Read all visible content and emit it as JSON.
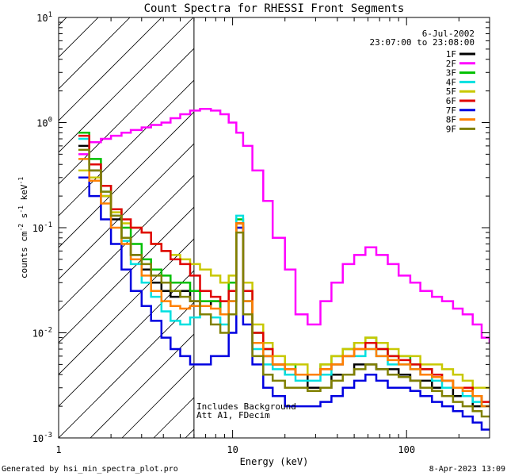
{
  "chart_data": {
    "type": "line",
    "title": "Count Spectra for RHESSI Front Segments",
    "xlabel": "Energy (keV)",
    "ylabel": "counts cm",
    "ylabel_sup1": "-2",
    "ylabel_mid": " s",
    "ylabel_sup2": "-1",
    "ylabel_mid2": " keV",
    "ylabel_sup3": "-1",
    "xscale": "log",
    "yscale": "log",
    "xlim": [
      1,
      300
    ],
    "ylim": [
      0.001,
      10
    ],
    "x_ticks": [
      {
        "value": 1,
        "label": "1"
      },
      {
        "value": 10,
        "label": "10"
      },
      {
        "value": 100,
        "label": "100"
      }
    ],
    "y_ticks": [
      {
        "value": 0.001,
        "base": "10",
        "exp": "-3"
      },
      {
        "value": 0.01,
        "base": "10",
        "exp": "-2"
      },
      {
        "value": 0.1,
        "base": "10",
        "exp": "-1"
      },
      {
        "value": 1,
        "base": "10",
        "exp": "0"
      },
      {
        "value": 10,
        "base": "10",
        "exp": "1"
      }
    ],
    "date_label": "6-Jul-2002",
    "time_label": "23:07:00 to 23:08:00",
    "annotation_line1": "Includes Background",
    "annotation_line2": "Att A1, FDecim",
    "hatch_boundary_keV": 6,
    "series": [
      {
        "name": "1F",
        "color": "#000000",
        "x": [
          1.3,
          1.5,
          1.75,
          2.0,
          2.3,
          2.6,
          3.0,
          3.4,
          3.9,
          4.4,
          5.0,
          5.7,
          6.5,
          7.5,
          8.5,
          9.5,
          10.5,
          11.5,
          13,
          15,
          17,
          20,
          23,
          27,
          32,
          37,
          43,
          50,
          58,
          67,
          78,
          90,
          105,
          120,
          140,
          160,
          185,
          210,
          240,
          270
        ],
        "y": [
          0.6,
          0.35,
          0.2,
          0.12,
          0.08,
          0.055,
          0.04,
          0.03,
          0.025,
          0.022,
          0.025,
          0.02,
          0.018,
          0.02,
          0.015,
          0.02,
          0.11,
          0.02,
          0.008,
          0.006,
          0.005,
          0.004,
          0.004,
          0.003,
          0.003,
          0.004,
          0.004,
          0.005,
          0.005,
          0.0045,
          0.0045,
          0.004,
          0.0035,
          0.0035,
          0.003,
          0.003,
          0.0025,
          0.0025,
          0.002,
          0.002
        ]
      },
      {
        "name": "2F",
        "color": "#ff00ff",
        "x": [
          1.3,
          1.5,
          1.75,
          2.0,
          2.3,
          2.6,
          3.0,
          3.4,
          3.9,
          4.4,
          5.0,
          5.7,
          6.5,
          7.5,
          8.5,
          9.5,
          10.5,
          11.5,
          13,
          15,
          17,
          20,
          23,
          27,
          32,
          37,
          43,
          50,
          58,
          67,
          78,
          90,
          105,
          120,
          140,
          160,
          185,
          210,
          240,
          270,
          300
        ],
        "y": [
          0.5,
          0.65,
          0.7,
          0.75,
          0.8,
          0.85,
          0.9,
          0.95,
          1.0,
          1.1,
          1.2,
          1.3,
          1.35,
          1.3,
          1.2,
          1.0,
          0.8,
          0.6,
          0.35,
          0.18,
          0.08,
          0.04,
          0.015,
          0.012,
          0.02,
          0.03,
          0.045,
          0.055,
          0.065,
          0.055,
          0.045,
          0.035,
          0.03,
          0.025,
          0.022,
          0.02,
          0.017,
          0.015,
          0.012,
          0.009,
          0.008
        ]
      },
      {
        "name": "3F",
        "color": "#00c000",
        "x": [
          1.3,
          1.5,
          1.75,
          2.0,
          2.3,
          2.6,
          3.0,
          3.4,
          3.9,
          4.4,
          5.0,
          5.7,
          6.5,
          7.5,
          8.5,
          9.5,
          10.5,
          11.5,
          13,
          15,
          17,
          20,
          23,
          27,
          32,
          37,
          43,
          50,
          58,
          67,
          78,
          90,
          105,
          120,
          140,
          160,
          185,
          210,
          240,
          270
        ],
        "y": [
          0.8,
          0.45,
          0.25,
          0.15,
          0.1,
          0.07,
          0.05,
          0.04,
          0.035,
          0.03,
          0.03,
          0.025,
          0.02,
          0.02,
          0.015,
          0.03,
          0.12,
          0.025,
          0.01,
          0.007,
          0.005,
          0.005,
          0.004,
          0.004,
          0.005,
          0.006,
          0.007,
          0.008,
          0.009,
          0.007,
          0.006,
          0.006,
          0.005,
          0.0045,
          0.004,
          0.0035,
          0.003,
          0.003,
          0.0025,
          0.002
        ]
      },
      {
        "name": "4F",
        "color": "#00e0e0",
        "x": [
          1.3,
          1.5,
          1.75,
          2.0,
          2.3,
          2.6,
          3.0,
          3.4,
          3.9,
          4.4,
          5.0,
          5.7,
          6.5,
          7.5,
          8.5,
          9.5,
          10.5,
          11.5,
          13,
          15,
          17,
          20,
          23,
          27,
          32,
          37,
          43,
          50,
          58,
          67,
          78,
          90,
          105,
          120,
          140,
          160,
          185,
          210,
          240,
          270
        ],
        "y": [
          0.7,
          0.4,
          0.22,
          0.13,
          0.075,
          0.045,
          0.03,
          0.022,
          0.016,
          0.013,
          0.012,
          0.014,
          0.015,
          0.014,
          0.012,
          0.02,
          0.13,
          0.02,
          0.007,
          0.005,
          0.0045,
          0.004,
          0.0035,
          0.0035,
          0.004,
          0.005,
          0.006,
          0.006,
          0.007,
          0.006,
          0.005,
          0.005,
          0.0045,
          0.004,
          0.0035,
          0.003,
          0.003,
          0.0025,
          0.0022,
          0.002
        ]
      },
      {
        "name": "5F",
        "color": "#c8c800",
        "x": [
          1.3,
          1.5,
          1.75,
          2.0,
          2.3,
          2.6,
          3.0,
          3.4,
          3.9,
          4.4,
          5.0,
          5.7,
          6.5,
          7.5,
          8.5,
          9.5,
          10.5,
          11.5,
          13,
          15,
          17,
          20,
          23,
          27,
          32,
          37,
          43,
          50,
          58,
          67,
          78,
          90,
          105,
          120,
          140,
          160,
          185,
          210,
          240,
          270
        ],
        "y": [
          0.35,
          0.3,
          0.2,
          0.14,
          0.11,
          0.1,
          0.09,
          0.07,
          0.06,
          0.055,
          0.05,
          0.045,
          0.04,
          0.035,
          0.03,
          0.035,
          0.1,
          0.03,
          0.012,
          0.008,
          0.006,
          0.005,
          0.005,
          0.004,
          0.005,
          0.006,
          0.007,
          0.008,
          0.009,
          0.008,
          0.007,
          0.006,
          0.006,
          0.005,
          0.005,
          0.0045,
          0.004,
          0.0035,
          0.003,
          0.003
        ]
      },
      {
        "name": "6F",
        "color": "#e00000",
        "x": [
          1.3,
          1.5,
          1.75,
          2.0,
          2.3,
          2.6,
          3.0,
          3.4,
          3.9,
          4.4,
          5.0,
          5.7,
          6.5,
          7.5,
          8.5,
          9.5,
          10.5,
          11.5,
          13,
          15,
          17,
          20,
          23,
          27,
          32,
          37,
          43,
          50,
          58,
          67,
          78,
          90,
          105,
          120,
          140,
          160,
          185,
          210,
          240,
          270
        ],
        "y": [
          0.75,
          0.4,
          0.25,
          0.15,
          0.12,
          0.1,
          0.09,
          0.07,
          0.06,
          0.05,
          0.045,
          0.035,
          0.025,
          0.022,
          0.02,
          0.025,
          0.11,
          0.025,
          0.01,
          0.007,
          0.005,
          0.0045,
          0.004,
          0.004,
          0.0045,
          0.005,
          0.006,
          0.007,
          0.008,
          0.007,
          0.006,
          0.0055,
          0.005,
          0.0045,
          0.004,
          0.0035,
          0.003,
          0.003,
          0.0025,
          0.0022
        ]
      },
      {
        "name": "7F",
        "color": "#0000e0",
        "x": [
          1.3,
          1.5,
          1.75,
          2.0,
          2.3,
          2.6,
          3.0,
          3.4,
          3.9,
          4.4,
          5.0,
          5.7,
          6.5,
          7.5,
          8.5,
          9.5,
          10.5,
          11.5,
          13,
          15,
          17,
          20,
          23,
          27,
          32,
          37,
          43,
          50,
          58,
          67,
          78,
          90,
          105,
          120,
          140,
          160,
          185,
          210,
          240,
          270
        ],
        "y": [
          0.3,
          0.2,
          0.12,
          0.07,
          0.04,
          0.025,
          0.018,
          0.013,
          0.009,
          0.007,
          0.006,
          0.005,
          0.005,
          0.006,
          0.006,
          0.01,
          0.1,
          0.012,
          0.005,
          0.003,
          0.0025,
          0.002,
          0.002,
          0.002,
          0.0022,
          0.0025,
          0.003,
          0.0035,
          0.004,
          0.0035,
          0.003,
          0.003,
          0.0028,
          0.0025,
          0.0022,
          0.002,
          0.0018,
          0.0016,
          0.0014,
          0.0012
        ]
      },
      {
        "name": "8F",
        "color": "#ff8000",
        "x": [
          1.3,
          1.5,
          1.75,
          2.0,
          2.3,
          2.6,
          3.0,
          3.4,
          3.9,
          4.4,
          5.0,
          5.7,
          6.5,
          7.5,
          8.5,
          9.5,
          10.5,
          11.5,
          13,
          15,
          17,
          20,
          23,
          27,
          32,
          37,
          43,
          50,
          58,
          67,
          78,
          90,
          105,
          120,
          140,
          160,
          185,
          210,
          240,
          270
        ],
        "y": [
          0.45,
          0.28,
          0.17,
          0.1,
          0.07,
          0.05,
          0.035,
          0.025,
          0.02,
          0.018,
          0.017,
          0.018,
          0.018,
          0.017,
          0.015,
          0.02,
          0.11,
          0.02,
          0.008,
          0.006,
          0.005,
          0.0045,
          0.004,
          0.004,
          0.0045,
          0.005,
          0.006,
          0.007,
          0.007,
          0.006,
          0.0055,
          0.005,
          0.0045,
          0.004,
          0.0038,
          0.0035,
          0.003,
          0.0028,
          0.0025,
          0.002
        ]
      },
      {
        "name": "9F",
        "color": "#808000",
        "x": [
          1.3,
          1.5,
          1.75,
          2.0,
          2.3,
          2.6,
          3.0,
          3.4,
          3.9,
          4.4,
          5.0,
          5.7,
          6.5,
          7.5,
          8.5,
          9.5,
          10.5,
          11.5,
          13,
          15,
          17,
          20,
          23,
          27,
          32,
          37,
          43,
          50,
          58,
          67,
          78,
          90,
          105,
          120,
          140,
          160,
          185,
          210,
          240,
          270
        ],
        "y": [
          0.55,
          0.35,
          0.22,
          0.13,
          0.08,
          0.055,
          0.045,
          0.035,
          0.03,
          0.025,
          0.022,
          0.02,
          0.015,
          0.012,
          0.01,
          0.015,
          0.09,
          0.015,
          0.006,
          0.004,
          0.0035,
          0.003,
          0.003,
          0.0028,
          0.003,
          0.0035,
          0.004,
          0.0045,
          0.005,
          0.0045,
          0.004,
          0.0038,
          0.0035,
          0.003,
          0.0028,
          0.0025,
          0.0022,
          0.002,
          0.0018,
          0.0016
        ]
      }
    ]
  },
  "footer": {
    "left": "Generated by hsi_min_spectra_plot.pro",
    "right": "8-Apr-2023 13:09"
  }
}
